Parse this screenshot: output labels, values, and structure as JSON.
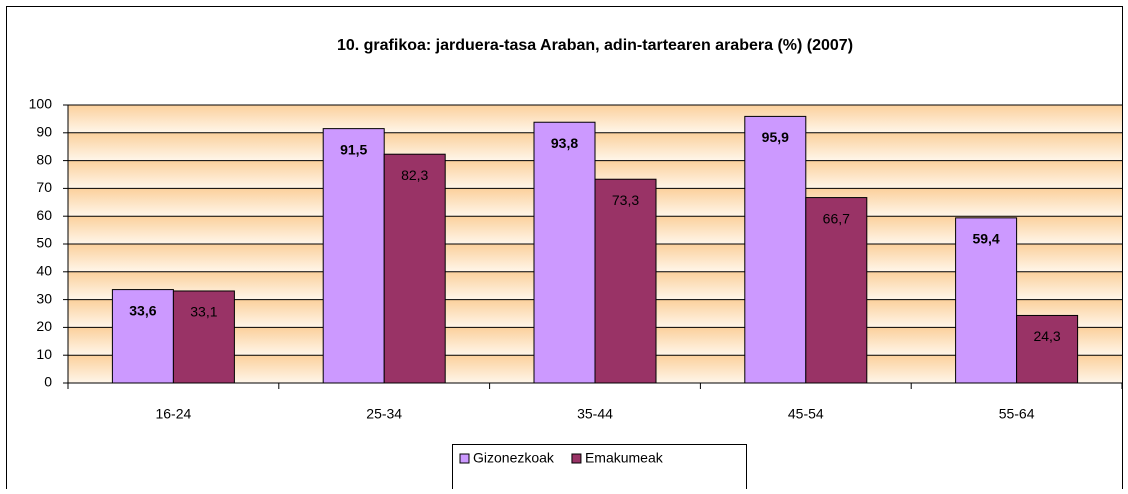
{
  "chart_data": {
    "type": "bar",
    "title": "10. grafikoa: jarduera-tasa Araban, adin-tartearen arabera (%) (2007)",
    "categories": [
      "16-24",
      "25-34",
      "35-44",
      "45-54",
      "55-64"
    ],
    "series": [
      {
        "name": "Gizonezkoak",
        "color": "#cc99ff",
        "values": [
          33.6,
          91.5,
          93.8,
          95.9,
          59.4
        ],
        "value_labels": [
          "33,6",
          "91,5",
          "93,8",
          "95,9",
          "59,4"
        ]
      },
      {
        "name": "Emakumeak",
        "color": "#993366",
        "values": [
          33.1,
          82.3,
          73.3,
          66.7,
          24.3
        ],
        "value_labels": [
          "33,1",
          "82,3",
          "73,3",
          "66,7",
          "24,3"
        ]
      }
    ],
    "ylim": [
      0,
      100
    ],
    "yticks": [
      0,
      10,
      20,
      30,
      40,
      50,
      60,
      70,
      80,
      90,
      100
    ],
    "grid": true,
    "legend": "bottom"
  }
}
